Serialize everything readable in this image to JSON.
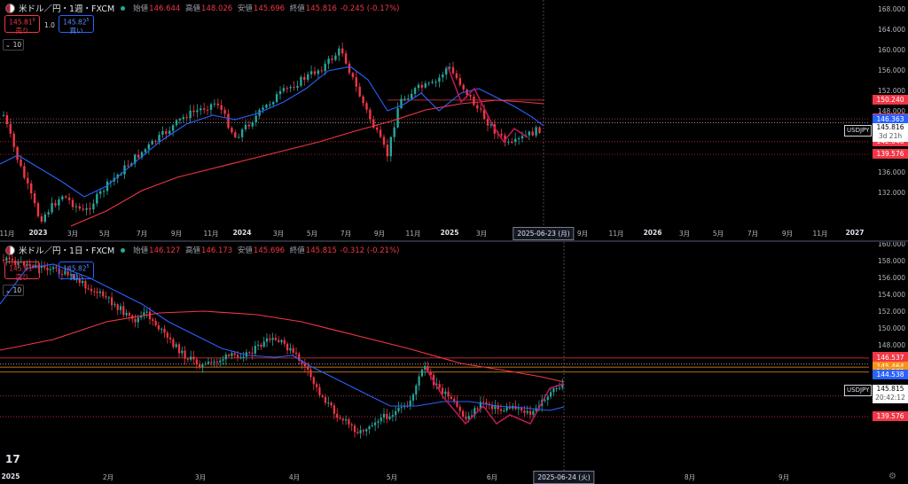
{
  "top": {
    "symbol": "米ドル／円・1週・FXCM",
    "ohlc": {
      "open_label": "始値",
      "open": "146.644",
      "high_label": "高値",
      "high": "148.026",
      "low_label": "安値",
      "low": "145.696",
      "close_label": "終値",
      "close": "145.816",
      "change": "-0.245 (-0.17%)"
    },
    "sell": {
      "price": "145.81",
      "sup": "9",
      "label": "売り"
    },
    "buy": {
      "price": "145.82",
      "sup": "5",
      "label": "買い"
    },
    "spread": "1.0",
    "indicator_count": "10",
    "y_ticks": [
      "168.000",
      "164.000",
      "160.000",
      "156.000",
      "152.000",
      "148.000",
      "144.000",
      "140.000",
      "136.000",
      "132.000"
    ],
    "x_ticks": [
      "11月",
      "2023",
      "3月",
      "5月",
      "7月",
      "9月",
      "11月",
      "2024",
      "3月",
      "5月",
      "7月",
      "9月",
      "11月",
      "2025",
      "3月",
      "5",
      "9月",
      "11月",
      "2026",
      "3月",
      "5月",
      "7月",
      "9月",
      "11月",
      "2027"
    ],
    "crosshair_date": "2025-06-23 (月)",
    "price_tags": [
      {
        "value": "150.240",
        "color": "#f23645"
      },
      {
        "value": "146.537",
        "color": "#f23645"
      },
      {
        "value": "146.363",
        "color": "#2962ff"
      },
      {
        "value": "142.046",
        "color": "#f23645"
      },
      {
        "value": "139.576",
        "color": "#f23645"
      }
    ],
    "symbol_tag": "USDJPY",
    "current_price": "145.816",
    "countdown": "3d 21h"
  },
  "bottom": {
    "symbol": "米ドル／円・1日・FXCM",
    "ohlc": {
      "open_label": "始値",
      "open": "146.127",
      "high_label": "高値",
      "high": "146.173",
      "low_label": "安値",
      "low": "145.696",
      "close_label": "終値",
      "close": "145.815",
      "change": "-0.312 (-0.21%)"
    },
    "sell": {
      "price": "145.81",
      "sup": "9",
      "label": "売り"
    },
    "buy": {
      "price": "145.82",
      "sup": "5",
      "label": "買い"
    },
    "indicator_count": "10",
    "y_ticks": [
      "160.000",
      "158.000",
      "156.000",
      "154.000",
      "152.000",
      "150.000",
      "148.000"
    ],
    "x_ticks": [
      "2025",
      "2月",
      "3月",
      "4月",
      "5月",
      "6月",
      "8月",
      "9月"
    ],
    "crosshair_date": "2025-06-24 (火)",
    "price_tags": [
      {
        "value": "146.684",
        "color": "#f23645"
      },
      {
        "value": "146.537",
        "color": "#f23645"
      },
      {
        "value": "145.464",
        "color": "#f7931a"
      },
      {
        "value": "144.872",
        "color": "#f7931a"
      },
      {
        "value": "144.538",
        "color": "#2962ff"
      },
      {
        "value": "142.046",
        "color": "#f23645"
      },
      {
        "value": "139.576",
        "color": "#f23645"
      }
    ],
    "symbol_tag": "USDJPY",
    "current_price": "145.815",
    "countdown": "20:42:12"
  },
  "colors": {
    "up": "#26a69a",
    "down": "#f23645",
    "ma_fast": "#2962ff",
    "ma_slow": "#f23645",
    "pattern": "#c2185b"
  },
  "logo_text": "17",
  "settings_icon": "gear-icon"
}
